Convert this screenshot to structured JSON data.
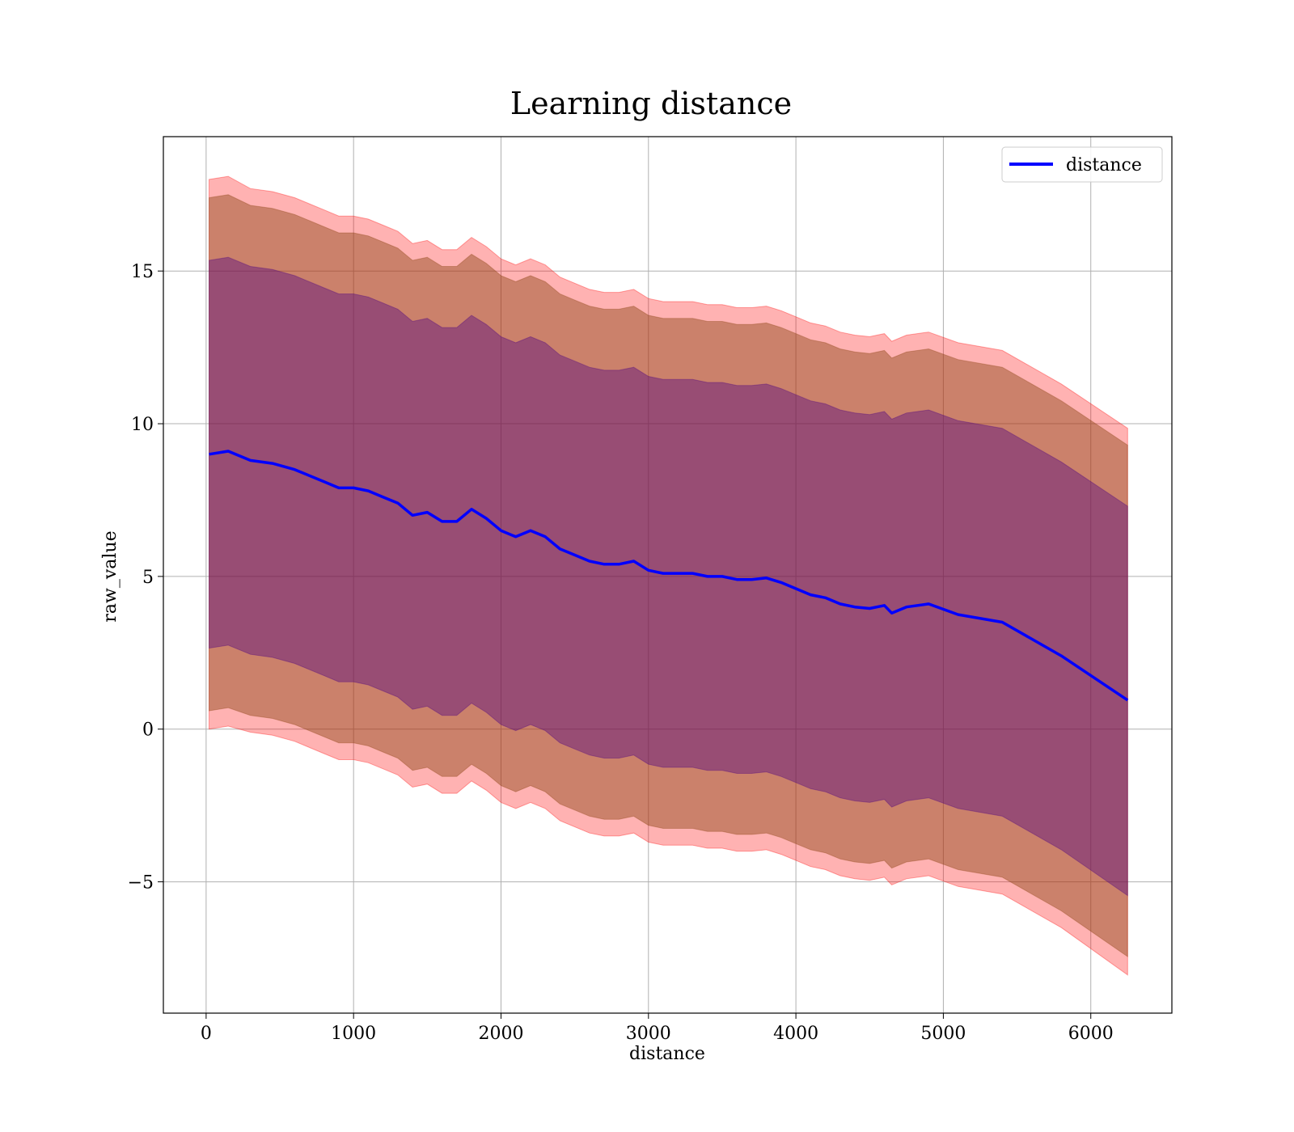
{
  "chart_data": {
    "type": "area",
    "title": "Learning distance",
    "xlabel": "distance",
    "ylabel": "raw_value",
    "xlim": [
      -290,
      6550
    ],
    "ylim": [
      -9.3,
      19.4
    ],
    "x_ticks": [
      0,
      1000,
      2000,
      3000,
      4000,
      5000,
      6000
    ],
    "x_tick_labels": [
      "0",
      "1000",
      "2000",
      "3000",
      "4000",
      "5000",
      "6000"
    ],
    "y_ticks": [
      -5,
      0,
      5,
      10,
      15
    ],
    "y_tick_labels": [
      "−5",
      "0",
      "5",
      "10",
      "15"
    ],
    "grid": true,
    "legend": {
      "position": "top-right",
      "entries": [
        "distance"
      ]
    },
    "colors": {
      "line": "#0000ff",
      "band_outer": "#ff0000",
      "band_mid": "#8b4513",
      "band_inner": "#4b0082"
    },
    "x": [
      20,
      150,
      300,
      450,
      600,
      800,
      900,
      1000,
      1100,
      1200,
      1300,
      1400,
      1500,
      1600,
      1700,
      1800,
      1900,
      2000,
      2100,
      2200,
      2300,
      2400,
      2500,
      2600,
      2700,
      2800,
      2900,
      3000,
      3100,
      3200,
      3300,
      3400,
      3500,
      3600,
      3700,
      3800,
      3900,
      4000,
      4100,
      4200,
      4300,
      4400,
      4500,
      4600,
      4650,
      4750,
      4900,
      5100,
      5400,
      5800,
      6250
    ],
    "series": [
      {
        "name": "distance",
        "values": [
          9.0,
          9.1,
          8.8,
          8.7,
          8.5,
          8.1,
          7.9,
          7.9,
          7.8,
          7.6,
          7.4,
          7.0,
          7.1,
          6.8,
          6.8,
          7.2,
          6.9,
          6.5,
          6.3,
          6.5,
          6.3,
          5.9,
          5.7,
          5.5,
          5.4,
          5.4,
          5.5,
          5.2,
          5.1,
          5.1,
          5.1,
          5.0,
          5.0,
          4.9,
          4.9,
          4.95,
          4.8,
          4.6,
          4.4,
          4.3,
          4.1,
          4.0,
          3.95,
          4.05,
          3.8,
          4.0,
          4.1,
          3.75,
          3.5,
          2.4,
          0.95
        ]
      }
    ],
    "bands": [
      {
        "level": "outer",
        "offset_above": [
          9.0,
          9.0,
          8.9,
          8.9,
          8.9,
          8.9,
          8.9,
          8.9,
          8.9,
          8.9,
          8.9,
          8.9,
          8.9,
          8.9,
          8.9,
          8.9,
          8.9,
          8.9,
          8.9,
          8.9,
          8.9,
          8.9,
          8.9,
          8.9,
          8.9,
          8.9,
          8.9,
          8.9,
          8.9,
          8.9,
          8.9,
          8.9,
          8.9,
          8.9,
          8.9,
          8.9,
          8.9,
          8.9,
          8.9,
          8.9,
          8.9,
          8.9,
          8.9,
          8.9,
          8.9,
          8.9,
          8.9,
          8.9,
          8.9,
          8.9,
          8.9
        ],
        "offset_below": [
          9.0,
          9.0,
          8.9,
          8.9,
          8.9,
          8.9,
          8.9,
          8.9,
          8.9,
          8.9,
          8.9,
          8.9,
          8.9,
          8.9,
          8.9,
          8.9,
          8.9,
          8.9,
          8.9,
          8.9,
          8.9,
          8.9,
          8.9,
          8.9,
          8.9,
          8.9,
          8.9,
          8.9,
          8.9,
          8.9,
          8.9,
          8.9,
          8.9,
          8.9,
          8.9,
          8.9,
          8.9,
          8.9,
          8.9,
          8.9,
          8.9,
          8.9,
          8.9,
          8.9,
          8.9,
          8.9,
          8.9,
          8.9,
          8.9,
          8.9,
          9.0
        ]
      },
      {
        "level": "mid",
        "offset_above": [
          8.4,
          8.4,
          8.35,
          8.35,
          8.35,
          8.35,
          8.35,
          8.35,
          8.35,
          8.35,
          8.35,
          8.35,
          8.35,
          8.35,
          8.35,
          8.35,
          8.35,
          8.35,
          8.35,
          8.35,
          8.35,
          8.35,
          8.35,
          8.35,
          8.35,
          8.35,
          8.35,
          8.35,
          8.35,
          8.35,
          8.35,
          8.35,
          8.35,
          8.35,
          8.35,
          8.35,
          8.35,
          8.35,
          8.35,
          8.35,
          8.35,
          8.35,
          8.35,
          8.35,
          8.35,
          8.35,
          8.35,
          8.35,
          8.35,
          8.35,
          8.35
        ],
        "offset_below": [
          8.4,
          8.4,
          8.35,
          8.35,
          8.35,
          8.35,
          8.35,
          8.35,
          8.35,
          8.35,
          8.35,
          8.35,
          8.35,
          8.35,
          8.35,
          8.35,
          8.35,
          8.35,
          8.35,
          8.35,
          8.35,
          8.35,
          8.35,
          8.35,
          8.35,
          8.35,
          8.35,
          8.35,
          8.35,
          8.35,
          8.35,
          8.35,
          8.35,
          8.35,
          8.35,
          8.35,
          8.35,
          8.35,
          8.35,
          8.35,
          8.35,
          8.35,
          8.35,
          8.35,
          8.35,
          8.35,
          8.35,
          8.35,
          8.35,
          8.35,
          8.4
        ]
      },
      {
        "level": "inner",
        "offset_above": [
          6.35,
          6.35,
          6.35,
          6.35,
          6.35,
          6.35,
          6.35,
          6.35,
          6.35,
          6.35,
          6.35,
          6.35,
          6.35,
          6.35,
          6.35,
          6.35,
          6.35,
          6.35,
          6.35,
          6.35,
          6.35,
          6.35,
          6.35,
          6.35,
          6.35,
          6.35,
          6.35,
          6.35,
          6.35,
          6.35,
          6.35,
          6.35,
          6.35,
          6.35,
          6.35,
          6.35,
          6.35,
          6.35,
          6.35,
          6.35,
          6.35,
          6.35,
          6.35,
          6.35,
          6.35,
          6.35,
          6.35,
          6.35,
          6.35,
          6.35,
          6.35
        ],
        "offset_below": [
          6.35,
          6.35,
          6.35,
          6.35,
          6.35,
          6.35,
          6.35,
          6.35,
          6.35,
          6.35,
          6.35,
          6.35,
          6.35,
          6.35,
          6.35,
          6.35,
          6.35,
          6.35,
          6.35,
          6.35,
          6.35,
          6.35,
          6.35,
          6.35,
          6.35,
          6.35,
          6.35,
          6.35,
          6.35,
          6.35,
          6.35,
          6.35,
          6.35,
          6.35,
          6.35,
          6.35,
          6.35,
          6.35,
          6.35,
          6.35,
          6.35,
          6.35,
          6.35,
          6.35,
          6.35,
          6.35,
          6.35,
          6.35,
          6.35,
          6.35,
          6.4
        ]
      }
    ]
  }
}
